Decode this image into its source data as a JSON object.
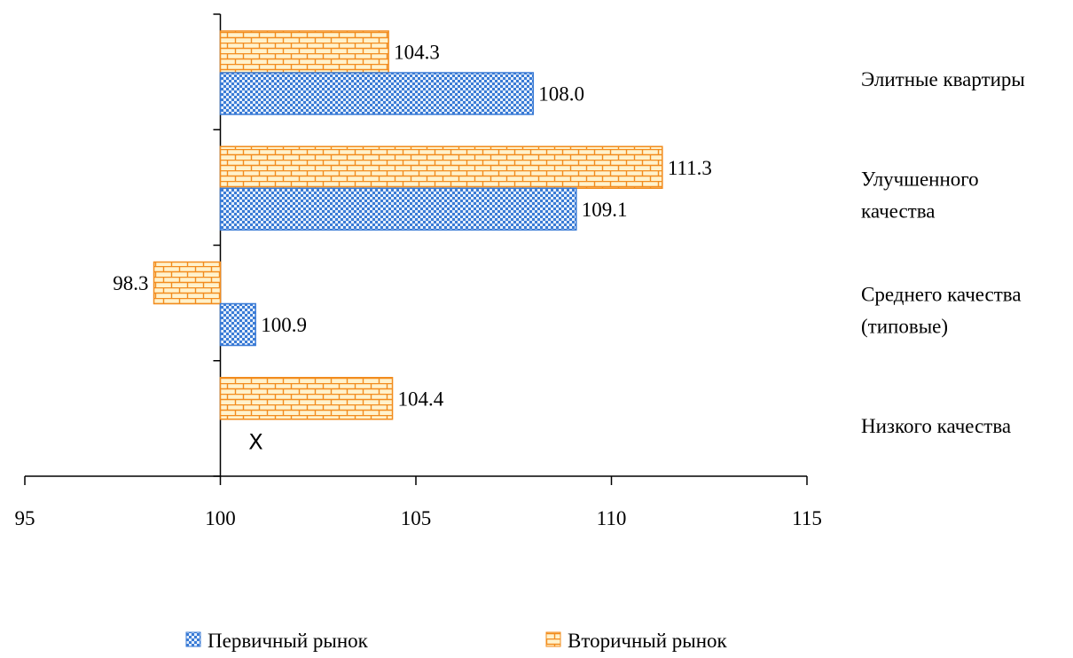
{
  "chart_data": {
    "type": "bar",
    "orientation": "horizontal",
    "categories": [
      "Элитные квартиры",
      "Улучшенного качества",
      "Среднего качества (типовые)",
      "Низкого качества"
    ],
    "category_lines": [
      [
        "Элитные квартиры"
      ],
      [
        "Улучшенного",
        "качества"
      ],
      [
        "Среднего качества",
        "(типовые)"
      ],
      [
        "Низкого качества"
      ]
    ],
    "series": [
      {
        "name": "Вторичный рынок",
        "values": [
          104.3,
          111.3,
          98.3,
          104.4
        ],
        "value_labels": [
          "104.3",
          "111.3",
          "98.3",
          "104.4"
        ],
        "color": "#F28C1E",
        "fill": "#FFF2CC",
        "pattern": "brick"
      },
      {
        "name": "Первичный рынок",
        "values": [
          108.0,
          109.1,
          100.9,
          null
        ],
        "value_labels": [
          "108.0",
          "109.1",
          "100.9",
          ""
        ],
        "color": "#3A7BD5",
        "fill": "#C9DDF7",
        "pattern": "checker"
      }
    ],
    "missing_marker": "X",
    "xlim": [
      95,
      115
    ],
    "baseline": 100,
    "xticks": [
      95,
      100,
      105,
      110,
      115
    ],
    "xtick_labels": [
      "95",
      "100",
      "105",
      "110",
      "115"
    ],
    "legend": {
      "position": "bottom",
      "items": [
        "Первичный рынок",
        "Вторичный рынок"
      ]
    },
    "grid": false
  }
}
